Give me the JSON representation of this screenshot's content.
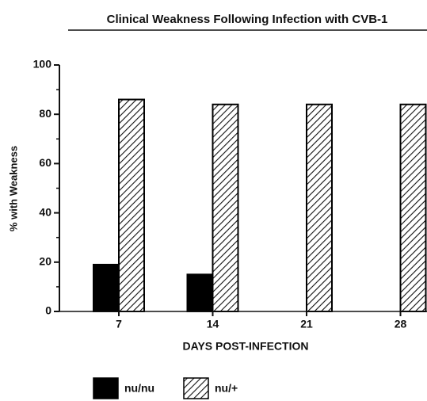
{
  "chart_data": {
    "type": "bar",
    "title": "Clinical Weakness Following Infection with CVB-1",
    "xlabel": "DAYS POST-INFECTION",
    "ylabel": "% with Weakness",
    "categories": [
      "7",
      "14",
      "21",
      "28"
    ],
    "series": [
      {
        "name": "nu/nu",
        "color": "#000000",
        "fill": "solid",
        "values": [
          19,
          15,
          0,
          0
        ]
      },
      {
        "name": "nu/+",
        "color": "#000000",
        "fill": "hatch",
        "values": [
          86,
          84,
          84,
          84
        ]
      }
    ],
    "ylim": [
      0,
      100
    ],
    "yticks": [
      0,
      20,
      40,
      60,
      80,
      100
    ],
    "yminorticks": [
      10,
      30,
      50,
      70,
      90
    ],
    "legend": "bottom-left"
  }
}
